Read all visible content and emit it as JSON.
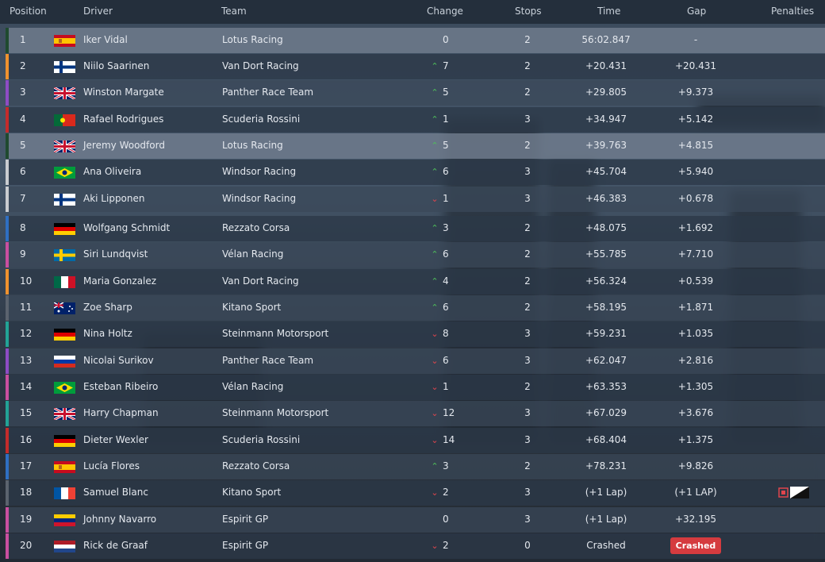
{
  "header": {
    "position": "Position",
    "driver": "Driver",
    "team": "Team",
    "change": "Change",
    "stops": "Stops",
    "time": "Time",
    "gap": "Gap",
    "penalties": "Penalties"
  },
  "rows": [
    {
      "pos": "1",
      "flag": "es",
      "driver": "Iker Vidal",
      "team": "Lotus Racing",
      "dir": "none",
      "change": "0",
      "stops": "2",
      "time": "56:02.847",
      "gap": "-",
      "color": "#1f4a2f"
    },
    {
      "pos": "2",
      "flag": "fi",
      "driver": "Niilo Saarinen",
      "team": "Van Dort Racing",
      "dir": "up",
      "change": "7",
      "stops": "2",
      "time": "+20.431",
      "gap": "+20.431",
      "color": "#f0922e"
    },
    {
      "pos": "3",
      "flag": "gb",
      "driver": "Winston Margate",
      "team": "Panther Race Team",
      "dir": "up",
      "change": "5",
      "stops": "2",
      "time": "+29.805",
      "gap": "+9.373",
      "color": "#8e4cc4"
    },
    {
      "pos": "4",
      "flag": "pt",
      "driver": "Rafael Rodrigues",
      "team": "Scuderia Rossini",
      "dir": "up",
      "change": "1",
      "stops": "3",
      "time": "+34.947",
      "gap": "+5.142",
      "color": "#c42b2b"
    },
    {
      "pos": "5",
      "flag": "gb",
      "driver": "Jeremy Woodford",
      "team": "Lotus Racing",
      "dir": "up",
      "change": "5",
      "stops": "2",
      "time": "+39.763",
      "gap": "+4.815",
      "color": "#1f4a2f"
    },
    {
      "pos": "6",
      "flag": "br",
      "driver": "Ana Oliveira",
      "team": "Windsor Racing",
      "dir": "up",
      "change": "6",
      "stops": "3",
      "time": "+45.704",
      "gap": "+5.940",
      "color": "#c9ccd0"
    },
    {
      "pos": "7",
      "flag": "fi",
      "driver": "Aki Lipponen",
      "team": "Windsor Racing",
      "dir": "down",
      "change": "1",
      "stops": "3",
      "time": "+46.383",
      "gap": "+0.678",
      "color": "#c9ccd0"
    },
    {
      "pos": "8",
      "flag": "de",
      "driver": "Wolfgang Schmidt",
      "team": "Rezzato Corsa",
      "dir": "up",
      "change": "3",
      "stops": "2",
      "time": "+48.075",
      "gap": "+1.692",
      "color": "#2f6fc2"
    },
    {
      "pos": "9",
      "flag": "se",
      "driver": "Siri Lundqvist",
      "team": "Vélan Racing",
      "dir": "up",
      "change": "6",
      "stops": "2",
      "time": "+55.785",
      "gap": "+7.710",
      "color": "#c94fa0"
    },
    {
      "pos": "10",
      "flag": "mx",
      "driver": "Maria Gonzalez",
      "team": "Van Dort Racing",
      "dir": "up",
      "change": "4",
      "stops": "2",
      "time": "+56.324",
      "gap": "+0.539",
      "color": "#f0922e"
    },
    {
      "pos": "11",
      "flag": "au",
      "driver": "Zoe Sharp",
      "team": "Kitano Sport",
      "dir": "up",
      "change": "6",
      "stops": "2",
      "time": "+58.195",
      "gap": "+1.871",
      "color": "#5b636e"
    },
    {
      "pos": "12",
      "flag": "de",
      "driver": "Nina Holtz",
      "team": "Steinmann Motorsport",
      "dir": "down",
      "change": "8",
      "stops": "3",
      "time": "+59.231",
      "gap": "+1.035",
      "color": "#22a396"
    },
    {
      "pos": "13",
      "flag": "ru",
      "driver": "Nicolai Surikov",
      "team": "Panther Race Team",
      "dir": "down",
      "change": "6",
      "stops": "3",
      "time": "+62.047",
      "gap": "+2.816",
      "color": "#8e4cc4"
    },
    {
      "pos": "14",
      "flag": "br",
      "driver": "Esteban Ribeiro",
      "team": "Vélan Racing",
      "dir": "down",
      "change": "1",
      "stops": "2",
      "time": "+63.353",
      "gap": "+1.305",
      "color": "#c94fa0"
    },
    {
      "pos": "15",
      "flag": "gb",
      "driver": "Harry Chapman",
      "team": "Steinmann Motorsport",
      "dir": "down",
      "change": "12",
      "stops": "3",
      "time": "+67.029",
      "gap": "+3.676",
      "color": "#22a396"
    },
    {
      "pos": "16",
      "flag": "de",
      "driver": "Dieter Wexler",
      "team": "Scuderia Rossini",
      "dir": "down",
      "change": "14",
      "stops": "3",
      "time": "+68.404",
      "gap": "+1.375",
      "color": "#c42b2b"
    },
    {
      "pos": "17",
      "flag": "es",
      "driver": "Lucía Flores",
      "team": "Rezzato Corsa",
      "dir": "up",
      "change": "3",
      "stops": "2",
      "time": "+78.231",
      "gap": "+9.826",
      "color": "#2f6fc2"
    },
    {
      "pos": "18",
      "flag": "fr",
      "driver": "Samuel Blanc",
      "team": "Kitano Sport",
      "dir": "down",
      "change": "2",
      "stops": "3",
      "time": "(+1 Lap)",
      "gap": "(+1 LAP)",
      "color": "#5b636e",
      "penalty": true
    },
    {
      "pos": "19",
      "flag": "ve",
      "driver": "Johnny Navarro",
      "team": "Espirit GP",
      "dir": "none",
      "change": "0",
      "stops": "3",
      "time": "(+1 Lap)",
      "gap": "+32.195",
      "color": "#c94fa0"
    },
    {
      "pos": "20",
      "flag": "nl",
      "driver": "Rick de Graaf",
      "team": "Espirit GP",
      "dir": "down",
      "change": "2",
      "stops": "0",
      "time": "Crashed",
      "gap": "Crashed",
      "color": "#c94fa0",
      "crashed": true
    }
  ],
  "highlight_rows": [
    1,
    5
  ],
  "icons": {
    "up": "arrow-up-icon",
    "down": "arrow-down-icon",
    "penalty": "penalty-flag-icon"
  },
  "colors": {
    "up": "#4fbf5a",
    "down": "#e0454d",
    "crashed": "#d53b3f"
  }
}
